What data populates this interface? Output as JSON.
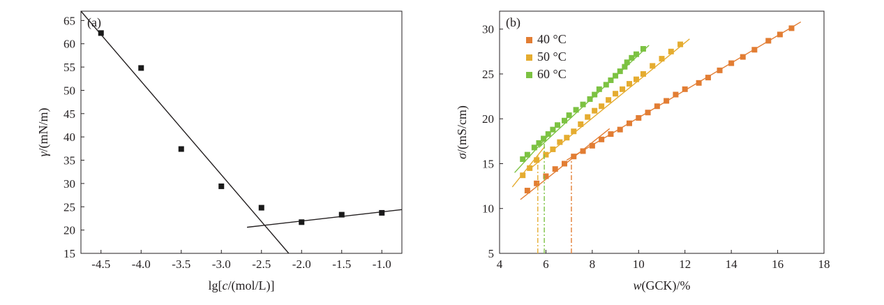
{
  "chart_data": [
    {
      "id": "a",
      "type": "scatter",
      "panel_label": "(a)",
      "xlabel_parts": [
        "lg[",
        "c",
        "/(mol/L)]"
      ],
      "ylabel_parts": [
        "γ",
        "/(mN/m)"
      ],
      "xlim": [
        -4.75,
        -0.75
      ],
      "ylim": [
        15,
        67
      ],
      "x_ticks": [
        -4.5,
        -4.0,
        -3.5,
        -3.0,
        -2.5,
        -2.0,
        -1.5,
        -1.0
      ],
      "x_tick_labels": [
        "-4.5",
        "-4.0",
        "-3.5",
        "-3.0",
        "-2.5",
        "-2.0",
        "-1.5",
        "-1.0"
      ],
      "y_ticks": [
        15,
        20,
        25,
        30,
        35,
        40,
        45,
        50,
        55,
        60,
        65
      ],
      "y_tick_labels": [
        "15",
        "20",
        "25",
        "30",
        "35",
        "40",
        "45",
        "50",
        "55",
        "60",
        "65"
      ],
      "grid": false,
      "points": [
        {
          "x": -4.5,
          "y": 62.3
        },
        {
          "x": -4.0,
          "y": 54.8
        },
        {
          "x": -3.5,
          "y": 37.4
        },
        {
          "x": -3.0,
          "y": 29.4
        },
        {
          "x": -2.5,
          "y": 24.8
        },
        {
          "x": -2.0,
          "y": 21.7
        },
        {
          "x": -1.5,
          "y": 23.3
        },
        {
          "x": -1.0,
          "y": 23.7
        }
      ],
      "marker_color": "#1a1a1a",
      "fit_lines": [
        {
          "x1": -4.75,
          "y1": 67.0,
          "x2": -2.16,
          "y2": 15.0
        },
        {
          "x1": -2.68,
          "y1": 20.6,
          "x2": -0.75,
          "y2": 24.4
        }
      ]
    },
    {
      "id": "b",
      "type": "scatter",
      "panel_label": "(b)",
      "xlabel_parts": [
        "w",
        "(GCK)/%"
      ],
      "ylabel_parts": [
        "σ",
        "/(mS/cm)"
      ],
      "xlim": [
        4,
        18
      ],
      "ylim": [
        5,
        32
      ],
      "x_ticks": [
        4,
        6,
        8,
        10,
        12,
        14,
        16,
        18
      ],
      "x_tick_labels": [
        "4",
        "6",
        "8",
        "10",
        "12",
        "14",
        "16",
        "18"
      ],
      "y_ticks": [
        5,
        10,
        15,
        20,
        25,
        30
      ],
      "y_tick_labels": [
        "5",
        "10",
        "15",
        "20",
        "25",
        "30"
      ],
      "grid": false,
      "legend_position": "top-left",
      "series": [
        {
          "name": "40 °C",
          "color": "#e27d33",
          "x": [
            5.2,
            5.6,
            6.0,
            6.4,
            6.8,
            7.2,
            7.6,
            8.0,
            8.4,
            8.8,
            9.2,
            9.6,
            10.0,
            10.4,
            10.8,
            11.2,
            11.6,
            12.0,
            12.6,
            13.0,
            13.5,
            14.0,
            14.5,
            15.0,
            15.6,
            16.1,
            16.6
          ],
          "y": [
            12.0,
            12.8,
            13.6,
            14.4,
            15.0,
            15.8,
            16.4,
            17.0,
            17.7,
            18.3,
            18.8,
            19.5,
            20.1,
            20.7,
            21.4,
            22.0,
            22.7,
            23.3,
            24.0,
            24.6,
            25.4,
            26.2,
            26.9,
            27.7,
            28.7,
            29.4,
            30.1
          ],
          "fit_lines": [
            {
              "x1": 4.9,
              "y1": 11.0,
              "x2": 8.75,
              "y2": 18.9
            },
            {
              "x1": 6.9,
              "y1": 15.4,
              "x2": 17.0,
              "y2": 30.8
            }
          ],
          "breakpoint_x": 7.1
        },
        {
          "name": "50 °C",
          "color": "#e5ac30",
          "x": [
            5.0,
            5.3,
            5.6,
            6.0,
            6.3,
            6.6,
            6.9,
            7.2,
            7.5,
            7.8,
            8.1,
            8.4,
            8.7,
            9.0,
            9.3,
            9.6,
            9.9,
            10.2,
            10.6,
            11.0,
            11.4,
            11.8
          ],
          "y": [
            13.7,
            14.5,
            15.4,
            16.0,
            16.6,
            17.4,
            17.9,
            18.6,
            19.4,
            20.2,
            20.9,
            21.4,
            22.1,
            22.8,
            23.3,
            23.9,
            24.4,
            25.0,
            25.9,
            26.7,
            27.5,
            28.3
          ],
          "fit_lines": [
            {
              "x1": 4.55,
              "y1": 12.4,
              "x2": 5.95,
              "y2": 16.9
            },
            {
              "x1": 5.3,
              "y1": 14.4,
              "x2": 12.2,
              "y2": 28.9
            }
          ],
          "breakpoint_x": 5.65
        },
        {
          "name": "60 °C",
          "color": "#7cc242",
          "x": [
            5.0,
            5.2,
            5.5,
            5.7,
            5.9,
            6.1,
            6.3,
            6.5,
            6.8,
            7.0,
            7.3,
            7.6,
            7.9,
            8.1,
            8.3,
            8.6,
            8.8,
            9.0,
            9.2,
            9.4,
            9.5,
            9.7,
            9.9,
            10.2
          ],
          "y": [
            15.5,
            16.0,
            16.8,
            17.3,
            17.8,
            18.3,
            18.8,
            19.3,
            19.8,
            20.4,
            21.0,
            21.6,
            22.2,
            22.7,
            23.3,
            23.8,
            24.3,
            24.8,
            25.3,
            25.8,
            26.3,
            26.8,
            27.2,
            27.8
          ],
          "fit_lines": [
            {
              "x1": 4.65,
              "y1": 14.0,
              "x2": 6.1,
              "y2": 18.1
            },
            {
              "x1": 5.7,
              "y1": 16.8,
              "x2": 10.45,
              "y2": 28.2
            }
          ],
          "breakpoint_x": 5.93
        }
      ]
    }
  ]
}
